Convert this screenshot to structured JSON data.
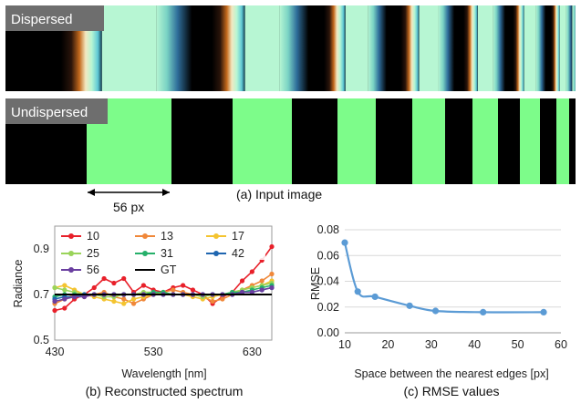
{
  "strips": {
    "top_label": "Dispersed",
    "bottom_label": "Undispersed",
    "scale_label": "56 px",
    "caption": "(a) Input image",
    "bar_color": "#7dfc8a",
    "bar_edges": [
      95,
      188,
      255,
      320,
      370,
      412,
      452,
      488,
      518,
      546,
      570,
      592,
      610,
      624,
      634
    ]
  },
  "chart_data": [
    {
      "type": "line",
      "caption": "(b) Reconstructed spectrum",
      "xlabel": "Wavelength [nm]",
      "ylabel": "Radiance",
      "xlim": [
        430,
        650
      ],
      "ylim": [
        0.5,
        1.0
      ],
      "xticks": [
        "430",
        "530",
        "630"
      ],
      "yticks": [
        "0.5",
        "0.7",
        "0.9"
      ],
      "legend_position": "top",
      "series": [
        {
          "name": "10",
          "color": "#e8202a",
          "x": [
            430,
            440,
            450,
            460,
            470,
            480,
            490,
            500,
            510,
            520,
            530,
            540,
            550,
            560,
            570,
            580,
            590,
            600,
            610,
            620,
            630,
            640,
            650
          ],
          "values": [
            0.63,
            0.64,
            0.68,
            0.7,
            0.73,
            0.77,
            0.75,
            0.77,
            0.71,
            0.74,
            0.72,
            0.71,
            0.73,
            0.74,
            0.72,
            0.7,
            0.66,
            0.69,
            0.71,
            0.76,
            0.8,
            0.85,
            0.91
          ]
        },
        {
          "name": "13",
          "color": "#f0883a",
          "x": [
            430,
            440,
            450,
            460,
            470,
            480,
            490,
            500,
            510,
            520,
            530,
            540,
            550,
            560,
            570,
            580,
            590,
            600,
            610,
            620,
            630,
            640,
            650
          ],
          "values": [
            0.66,
            0.68,
            0.7,
            0.69,
            0.7,
            0.71,
            0.69,
            0.68,
            0.66,
            0.68,
            0.7,
            0.71,
            0.72,
            0.71,
            0.7,
            0.69,
            0.67,
            0.68,
            0.7,
            0.72,
            0.74,
            0.76,
            0.79
          ]
        },
        {
          "name": "17",
          "color": "#f4c430",
          "x": [
            430,
            440,
            450,
            460,
            470,
            480,
            490,
            500,
            510,
            520,
            530,
            540,
            550,
            560,
            570,
            580,
            590,
            600,
            610,
            620,
            630,
            640,
            650
          ],
          "values": [
            0.73,
            0.74,
            0.72,
            0.7,
            0.69,
            0.68,
            0.67,
            0.66,
            0.68,
            0.69,
            0.7,
            0.71,
            0.7,
            0.7,
            0.69,
            0.68,
            0.69,
            0.7,
            0.71,
            0.72,
            0.73,
            0.74,
            0.76
          ]
        },
        {
          "name": "25",
          "color": "#9ad45a",
          "x": [
            430,
            440,
            450,
            460,
            470,
            480,
            490,
            500,
            510,
            520,
            530,
            540,
            550,
            560,
            570,
            580,
            590,
            600,
            610,
            620,
            630,
            640,
            650
          ],
          "values": [
            0.73,
            0.72,
            0.71,
            0.7,
            0.7,
            0.69,
            0.69,
            0.7,
            0.7,
            0.71,
            0.71,
            0.7,
            0.7,
            0.7,
            0.7,
            0.69,
            0.7,
            0.7,
            0.71,
            0.72,
            0.73,
            0.74,
            0.75
          ]
        },
        {
          "name": "31",
          "color": "#26b06a",
          "x": [
            430,
            440,
            450,
            460,
            470,
            480,
            490,
            500,
            510,
            520,
            530,
            540,
            550,
            560,
            570,
            580,
            590,
            600,
            610,
            620,
            630,
            640,
            650
          ],
          "values": [
            0.69,
            0.7,
            0.7,
            0.7,
            0.7,
            0.7,
            0.7,
            0.7,
            0.7,
            0.7,
            0.71,
            0.71,
            0.7,
            0.7,
            0.7,
            0.7,
            0.7,
            0.7,
            0.71,
            0.71,
            0.72,
            0.73,
            0.74
          ]
        },
        {
          "name": "42",
          "color": "#1f66b0",
          "x": [
            430,
            440,
            450,
            460,
            470,
            480,
            490,
            500,
            510,
            520,
            530,
            540,
            550,
            560,
            570,
            580,
            590,
            600,
            610,
            620,
            630,
            640,
            650
          ],
          "values": [
            0.68,
            0.69,
            0.69,
            0.7,
            0.7,
            0.7,
            0.7,
            0.7,
            0.7,
            0.7,
            0.7,
            0.7,
            0.7,
            0.7,
            0.7,
            0.7,
            0.7,
            0.7,
            0.7,
            0.71,
            0.71,
            0.72,
            0.73
          ]
        },
        {
          "name": "56",
          "color": "#6a3fa0",
          "x": [
            430,
            440,
            450,
            460,
            470,
            480,
            490,
            500,
            510,
            520,
            530,
            540,
            550,
            560,
            570,
            580,
            590,
            600,
            610,
            620,
            630,
            640,
            650
          ],
          "values": [
            0.67,
            0.68,
            0.69,
            0.69,
            0.7,
            0.7,
            0.7,
            0.7,
            0.7,
            0.7,
            0.7,
            0.7,
            0.7,
            0.7,
            0.7,
            0.7,
            0.7,
            0.7,
            0.7,
            0.71,
            0.71,
            0.72,
            0.73
          ]
        },
        {
          "name": "GT",
          "color": "#000000",
          "x": [
            430,
            650
          ],
          "values": [
            0.7,
            0.7
          ]
        }
      ]
    },
    {
      "type": "scatter",
      "caption": "(c) RMSE values",
      "xlabel": "Space between the nearest edges [px]",
      "ylabel": "RMSE",
      "xlim": [
        10,
        60
      ],
      "ylim": [
        0,
        0.08
      ],
      "xticks": [
        "10",
        "20",
        "30",
        "40",
        "50",
        "60"
      ],
      "yticks": [
        "0.00",
        "0.02",
        "0.04",
        "0.06",
        "0.08"
      ],
      "grid": true,
      "color": "#5b9bd5",
      "x": [
        10,
        13,
        17,
        25,
        31,
        42,
        56
      ],
      "values": [
        0.07,
        0.032,
        0.028,
        0.021,
        0.017,
        0.016,
        0.016
      ]
    }
  ]
}
